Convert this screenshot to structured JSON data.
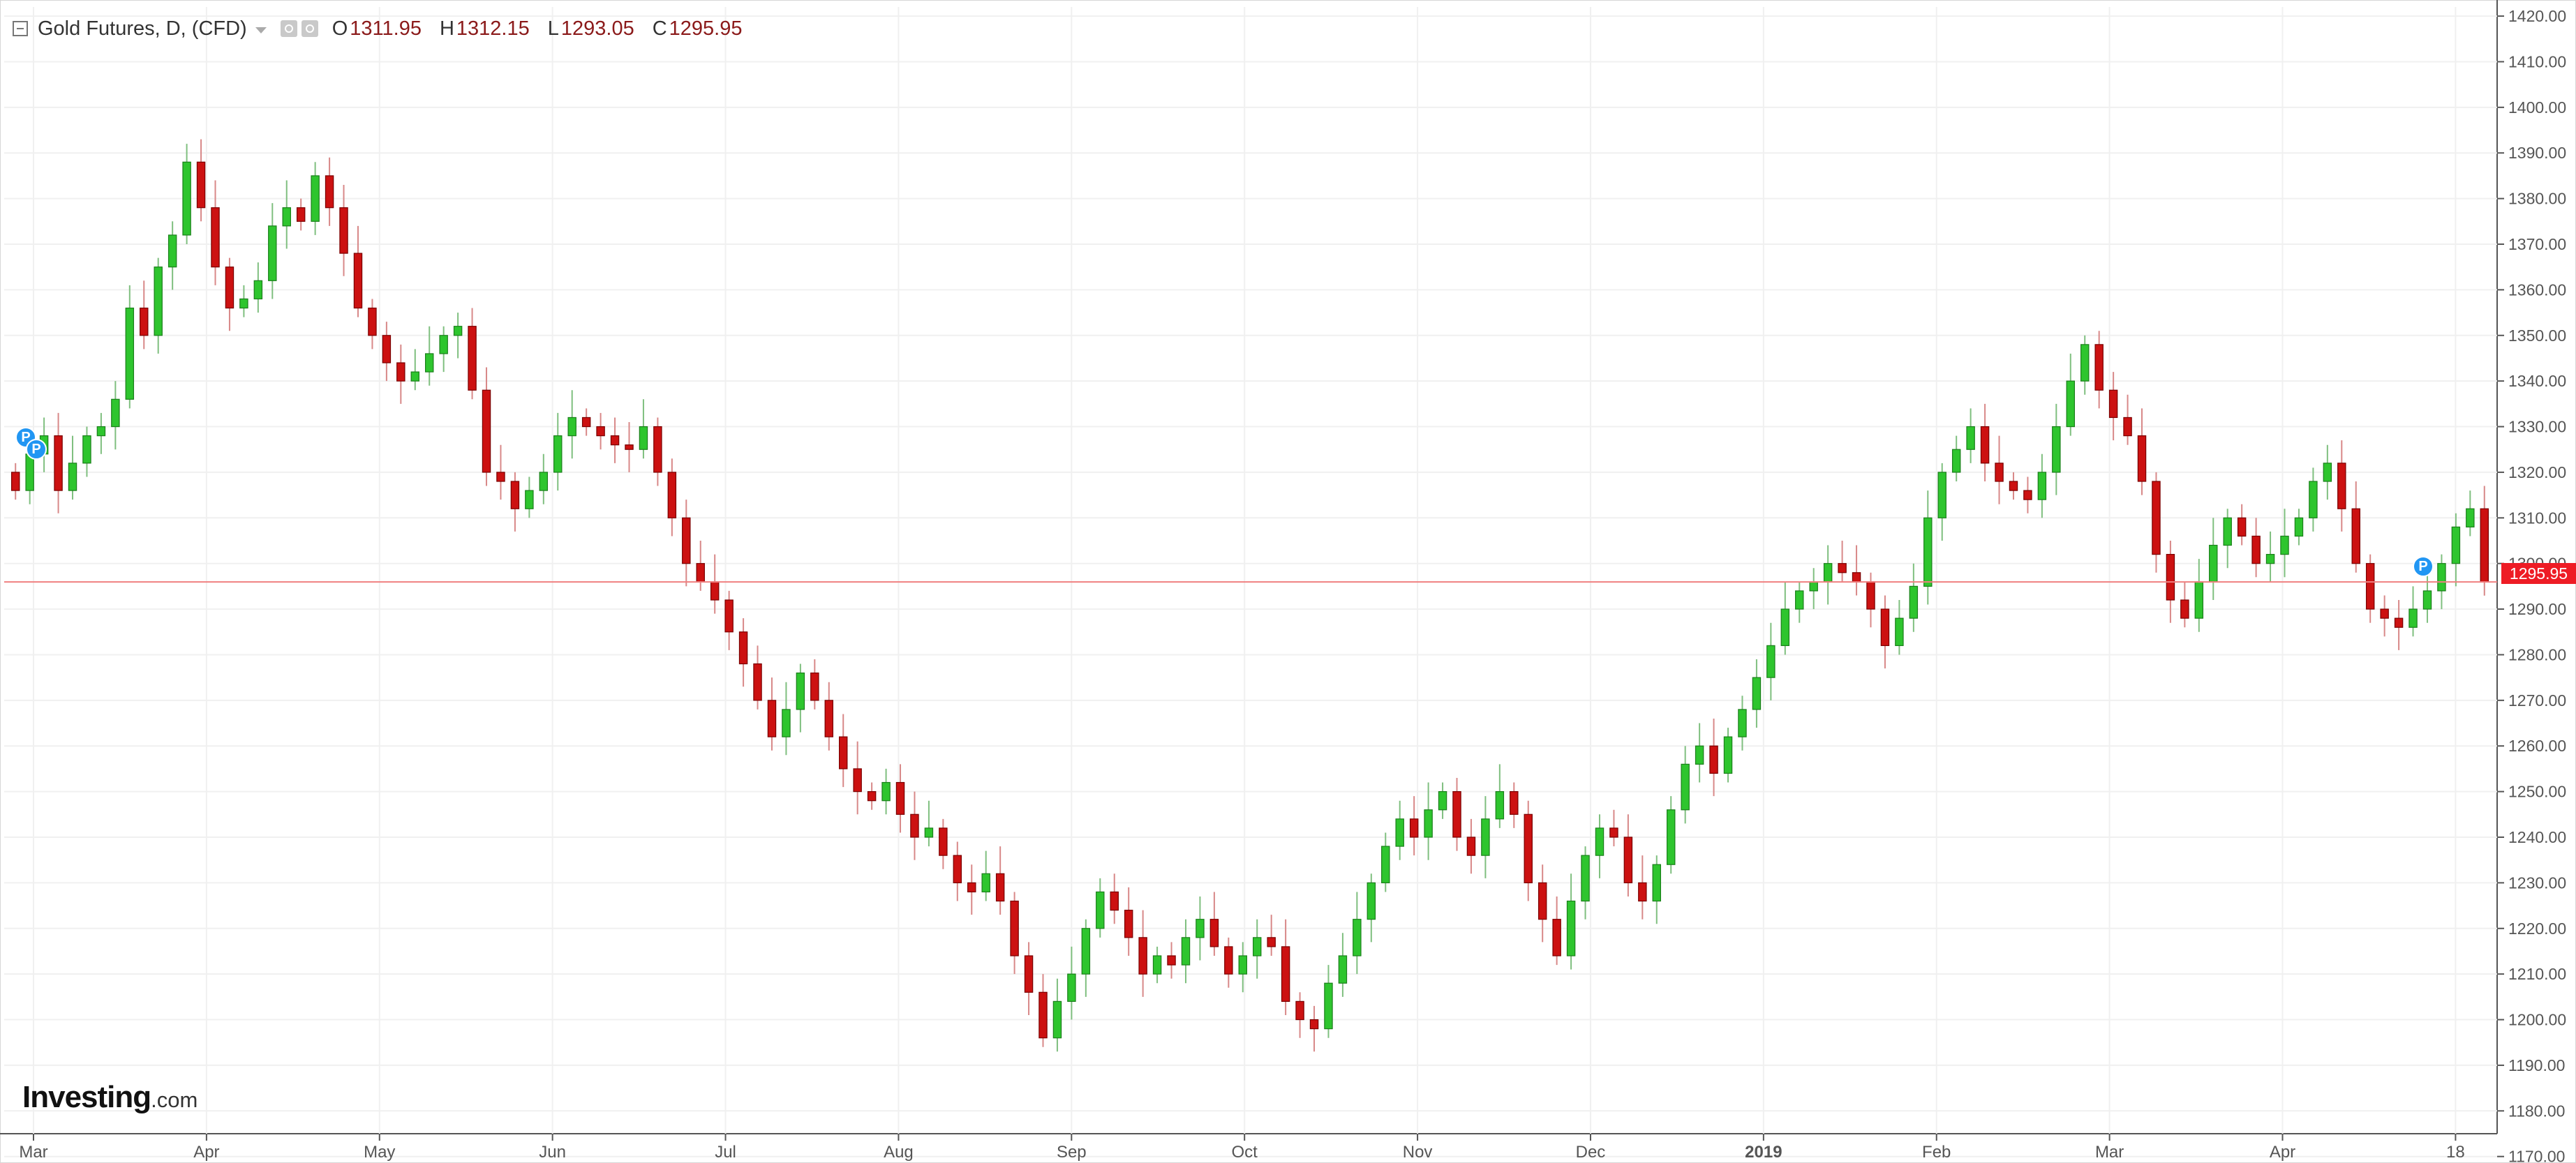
{
  "header": {
    "symbol_title": "Gold Futures, D, (CFD)",
    "ohlc": [
      {
        "key": "O",
        "value": "1311.95"
      },
      {
        "key": "H",
        "value": "1312.15"
      },
      {
        "key": "L",
        "value": "1293.05"
      },
      {
        "key": "C",
        "value": "1295.95"
      }
    ]
  },
  "branding": {
    "logo_main": "Investing",
    "logo_suffix": ".com"
  },
  "last_price_label": "1295.95",
  "pivot_markers": [
    "P",
    "P",
    "P"
  ],
  "colors": {
    "up": "#2ec52e",
    "down": "#cc1111",
    "last_price": "#ee1c25",
    "grid": "#f0f0f0"
  },
  "chart_data": {
    "type": "candlestick",
    "title": "Gold Futures, D, (CFD)",
    "ylim": [
      1175,
      1422
    ],
    "y_ticks": [
      "1420.00",
      "1410.00",
      "1400.00",
      "1390.00",
      "1380.00",
      "1370.00",
      "1360.00",
      "1350.00",
      "1340.00",
      "1330.00",
      "1320.00",
      "1310.00",
      "1300.00",
      "1290.00",
      "1280.00",
      "1270.00",
      "1260.00",
      "1250.00",
      "1240.00",
      "1230.00",
      "1220.00",
      "1210.00",
      "1200.00",
      "1190.00",
      "1180.00",
      "1170.00"
    ],
    "x_ticks": [
      "Mar",
      "Apr",
      "May",
      "Jun",
      "Jul",
      "Aug",
      "Sep",
      "Oct",
      "Nov",
      "Dec",
      "2019",
      "Feb",
      "Mar",
      "Apr",
      "18"
    ],
    "last_close": 1295.95,
    "grid": true,
    "approximate_closes": [
      1316,
      1324,
      1328,
      1316,
      1322,
      1328,
      1330,
      1336,
      1356,
      1350,
      1365,
      1372,
      1388,
      1378,
      1365,
      1356,
      1358,
      1362,
      1374,
      1378,
      1375,
      1385,
      1378,
      1368,
      1356,
      1350,
      1344,
      1340,
      1342,
      1346,
      1350,
      1352,
      1338,
      1320,
      1318,
      1312,
      1316,
      1320,
      1328,
      1332,
      1330,
      1328,
      1326,
      1325,
      1330,
      1320,
      1310,
      1300,
      1296,
      1292,
      1285,
      1278,
      1270,
      1262,
      1268,
      1276,
      1270,
      1262,
      1255,
      1250,
      1248,
      1252,
      1245,
      1240,
      1242,
      1236,
      1230,
      1228,
      1232,
      1226,
      1214,
      1206,
      1196,
      1204,
      1210,
      1220,
      1228,
      1224,
      1218,
      1210,
      1214,
      1212,
      1218,
      1222,
      1216,
      1210,
      1214,
      1218,
      1216,
      1204,
      1200,
      1198,
      1208,
      1214,
      1222,
      1230,
      1238,
      1244,
      1240,
      1246,
      1250,
      1240,
      1236,
      1244,
      1250,
      1245,
      1230,
      1222,
      1214,
      1226,
      1236,
      1242,
      1240,
      1230,
      1226,
      1234,
      1246,
      1256,
      1260,
      1254,
      1262,
      1268,
      1275,
      1282,
      1290,
      1294,
      1296,
      1300,
      1298,
      1296,
      1290,
      1282,
      1288,
      1295,
      1310,
      1320,
      1325,
      1330,
      1322,
      1318,
      1316,
      1314,
      1320,
      1330,
      1340,
      1348,
      1338,
      1332,
      1328,
      1318,
      1302,
      1292,
      1288,
      1296,
      1304,
      1310,
      1306,
      1300,
      1302,
      1306,
      1310,
      1318,
      1322,
      1312,
      1300,
      1290,
      1288,
      1286,
      1290,
      1294,
      1300,
      1308,
      1312,
      1295.95
    ]
  }
}
